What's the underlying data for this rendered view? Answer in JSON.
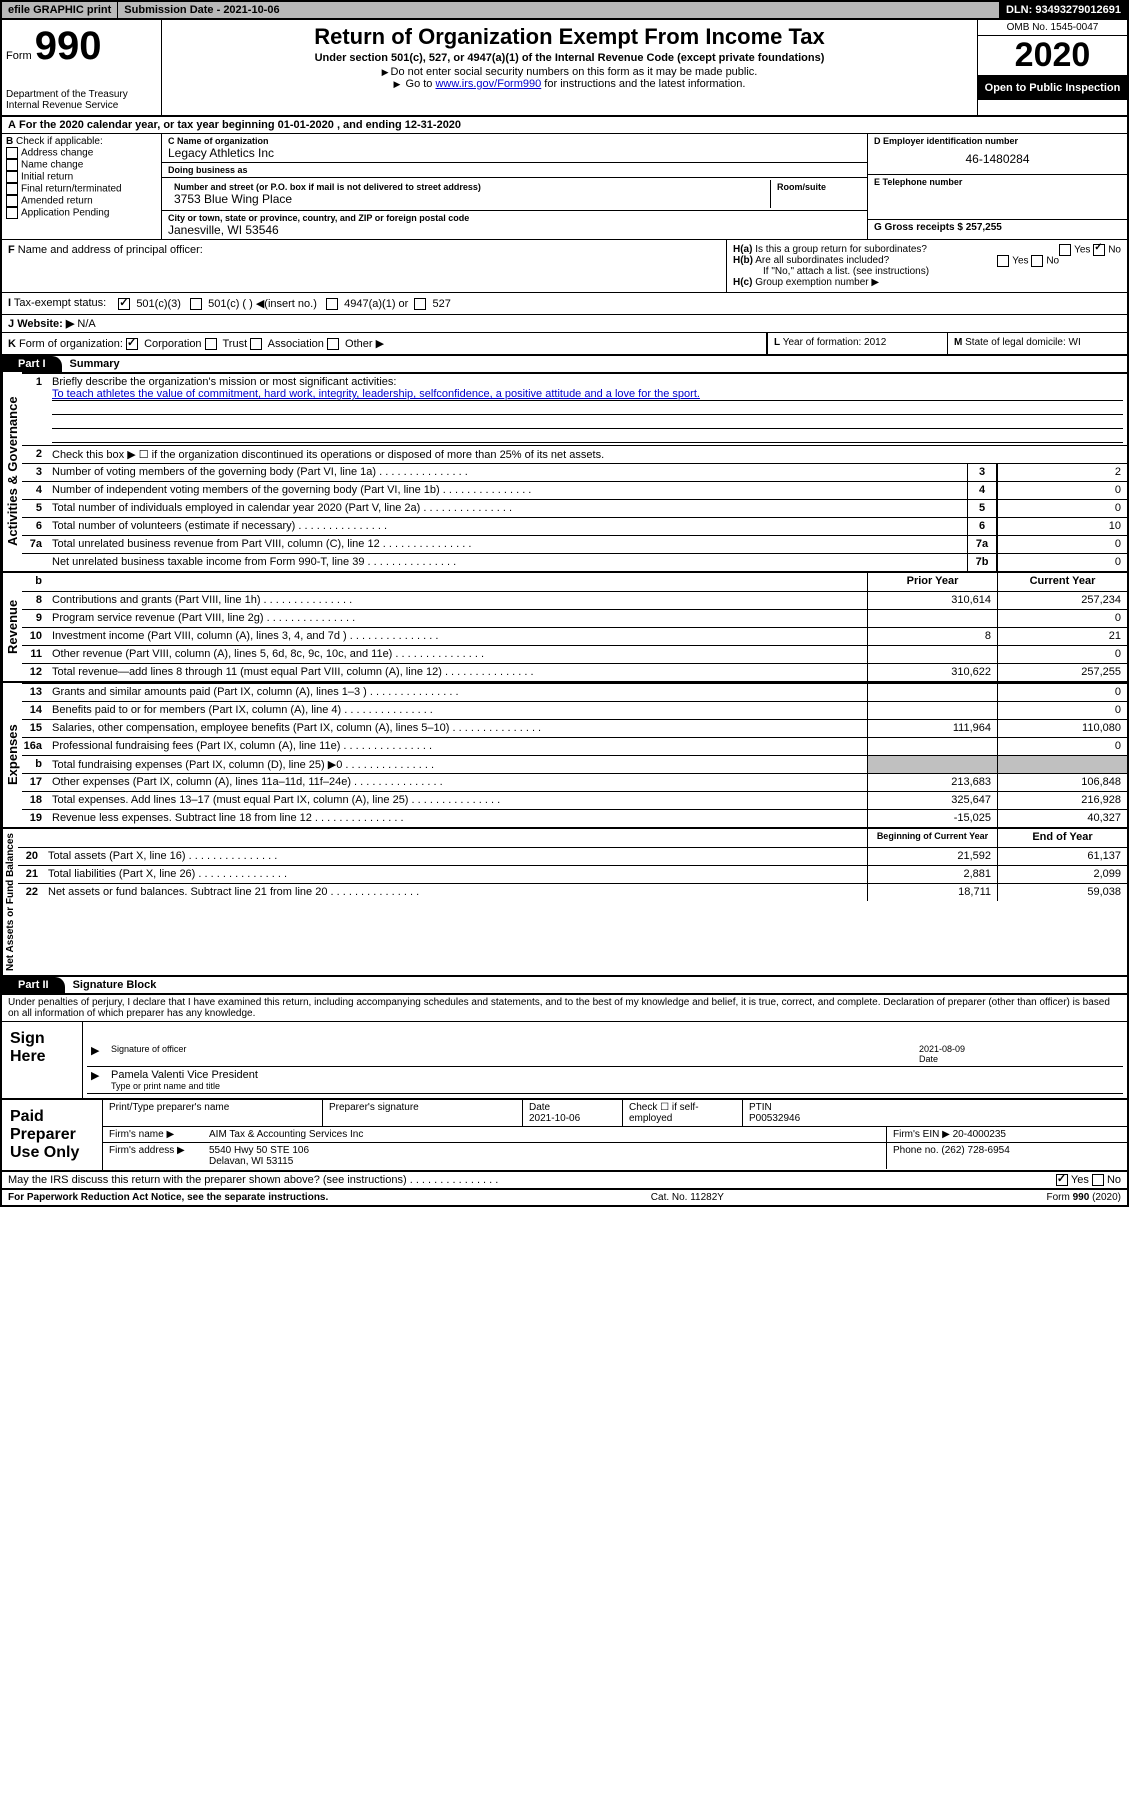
{
  "topbar": {
    "efile": "efile GRAPHIC print",
    "subdate_label": "Submission Date - 2021-10-06",
    "dln": "DLN: 93493279012691"
  },
  "header": {
    "form_word": "Form",
    "form_num": "990",
    "dept1": "Department of the Treasury",
    "dept2": "Internal Revenue Service",
    "title": "Return of Organization Exempt From Income Tax",
    "sub1": "Under section 501(c), 527, or 4947(a)(1) of the Internal Revenue Code (except private foundations)",
    "sub2": "Do not enter social security numbers on this form as it may be made public.",
    "sub3_pre": "Go to ",
    "sub3_link": "www.irs.gov/Form990",
    "sub3_post": " for instructions and the latest information.",
    "omb": "OMB No. 1545-0047",
    "year": "2020",
    "public": "Open to Public Inspection"
  },
  "row_a": "For the 2020 calendar year, or tax year beginning 01-01-2020   , and ending 12-31-2020",
  "section_b": {
    "check_label": "Check if applicable:",
    "opts": [
      "Address change",
      "Name change",
      "Initial return",
      "Final return/terminated",
      "Amended return",
      "Application Pending"
    ],
    "c_name_lbl": "C Name of organization",
    "c_name": "Legacy Athletics Inc",
    "dba_lbl": "Doing business as",
    "dba": "",
    "street_lbl": "Number and street (or P.O. box if mail is not delivered to street address)",
    "street": "3753 Blue Wing Place",
    "room_lbl": "Room/suite",
    "city_lbl": "City or town, state or province, country, and ZIP or foreign postal code",
    "city": "Janesville, WI  53546",
    "d_lbl": "D Employer identification number",
    "d_val": "46-1480284",
    "e_lbl": "E Telephone number",
    "e_val": "",
    "g_lbl": "G Gross receipts $ 257,255"
  },
  "section_f": {
    "f_lbl": "Name and address of principal officer:",
    "ha": "Is this a group return for subordinates?",
    "ha_no": true,
    "hb": "Are all subordinates included?",
    "hb_note": "If \"No,\" attach a list. (see instructions)",
    "hc": "Group exemption number ▶"
  },
  "tax_status": {
    "label": "Tax-exempt status:",
    "501c3": true,
    "opts": [
      "501(c)(3)",
      "501(c) (  ) ◀(insert no.)",
      "4947(a)(1) or",
      "527"
    ]
  },
  "website": {
    "label": "Website: ▶",
    "val": "N/A"
  },
  "org_form": {
    "label": "Form of organization:",
    "corp": true,
    "opts": [
      "Corporation",
      "Trust",
      "Association",
      "Other ▶"
    ],
    "l_lbl": "Year of formation: 2012",
    "m_lbl": "State of legal domicile: WI"
  },
  "part1": {
    "tab": "Part I",
    "title": "Summary"
  },
  "summary": {
    "q1_label": "Briefly describe the organization's mission or most significant activities:",
    "q1_text": "To teach athletes the value of commitment, hard work, integrity, leadership, selfconfidence, a positive attitude and a love for the sport.",
    "q2": "Check this box ▶ ☐  if the organization discontinued its operations or disposed of more than 25% of its net assets.",
    "vlabels": [
      "Activities & Governance",
      "Revenue",
      "Expenses",
      "Net Assets or Fund Balances"
    ]
  },
  "lines_simple": [
    {
      "n": "3",
      "d": "Number of voting members of the governing body (Part VI, line 1a)",
      "num": "3",
      "v": "2"
    },
    {
      "n": "4",
      "d": "Number of independent voting members of the governing body (Part VI, line 1b)",
      "num": "4",
      "v": "0"
    },
    {
      "n": "5",
      "d": "Total number of individuals employed in calendar year 2020 (Part V, line 2a)",
      "num": "5",
      "v": "0"
    },
    {
      "n": "6",
      "d": "Total number of volunteers (estimate if necessary)",
      "num": "6",
      "v": "10"
    },
    {
      "n": "7a",
      "d": "Total unrelated business revenue from Part VIII, column (C), line 12",
      "num": "7a",
      "v": "0"
    },
    {
      "n": "",
      "d": "Net unrelated business taxable income from Form 990-T, line 39",
      "num": "7b",
      "v": "0"
    }
  ],
  "yr_hdr": {
    "prior": "Prior Year",
    "current": "Current Year"
  },
  "lines_revenue": [
    {
      "n": "8",
      "d": "Contributions and grants (Part VIII, line 1h)",
      "p": "310,614",
      "c": "257,234"
    },
    {
      "n": "9",
      "d": "Program service revenue (Part VIII, line 2g)",
      "p": "",
      "c": "0"
    },
    {
      "n": "10",
      "d": "Investment income (Part VIII, column (A), lines 3, 4, and 7d )",
      "p": "8",
      "c": "21"
    },
    {
      "n": "11",
      "d": "Other revenue (Part VIII, column (A), lines 5, 6d, 8c, 9c, 10c, and 11e)",
      "p": "",
      "c": "0"
    },
    {
      "n": "12",
      "d": "Total revenue—add lines 8 through 11 (must equal Part VIII, column (A), line 12)",
      "p": "310,622",
      "c": "257,255"
    }
  ],
  "lines_expenses": [
    {
      "n": "13",
      "d": "Grants and similar amounts paid (Part IX, column (A), lines 1–3 )",
      "p": "",
      "c": "0"
    },
    {
      "n": "14",
      "d": "Benefits paid to or for members (Part IX, column (A), line 4)",
      "p": "",
      "c": "0"
    },
    {
      "n": "15",
      "d": "Salaries, other compensation, employee benefits (Part IX, column (A), lines 5–10)",
      "p": "111,964",
      "c": "110,080"
    },
    {
      "n": "16a",
      "d": "Professional fundraising fees (Part IX, column (A), line 11e)",
      "p": "",
      "c": "0"
    },
    {
      "n": "b",
      "d": "Total fundraising expenses (Part IX, column (D), line 25) ▶0",
      "p": "shade",
      "c": "shade"
    },
    {
      "n": "17",
      "d": "Other expenses (Part IX, column (A), lines 11a–11d, 11f–24e)",
      "p": "213,683",
      "c": "106,848"
    },
    {
      "n": "18",
      "d": "Total expenses. Add lines 13–17 (must equal Part IX, column (A), line 25)",
      "p": "325,647",
      "c": "216,928"
    },
    {
      "n": "19",
      "d": "Revenue less expenses. Subtract line 18 from line 12",
      "p": "-15,025",
      "c": "40,327"
    }
  ],
  "net_hdr": {
    "prior": "Beginning of Current Year",
    "current": "End of Year"
  },
  "lines_net": [
    {
      "n": "20",
      "d": "Total assets (Part X, line 16)",
      "p": "21,592",
      "c": "61,137"
    },
    {
      "n": "21",
      "d": "Total liabilities (Part X, line 26)",
      "p": "2,881",
      "c": "2,099"
    },
    {
      "n": "22",
      "d": "Net assets or fund balances. Subtract line 21 from line 20",
      "p": "18,711",
      "c": "59,038"
    }
  ],
  "part2": {
    "tab": "Part II",
    "title": "Signature Block"
  },
  "perjury": "Under penalties of perjury, I declare that I have examined this return, including accompanying schedules and statements, and to the best of my knowledge and belief, it is true, correct, and complete. Declaration of preparer (other than officer) is based on all information of which preparer has any knowledge.",
  "sign": {
    "label": "Sign Here",
    "sig_lbl": "Signature of officer",
    "date_lbl": "Date",
    "date": "2021-08-09",
    "name": "Pamela Valenti Vice President",
    "name_lbl": "Type or print name and title"
  },
  "prep": {
    "label": "Paid Preparer Use Only",
    "h1": "Print/Type preparer's name",
    "h2": "Preparer's signature",
    "h3": "Date",
    "h3v": "2021-10-06",
    "h4": "Check ☐ if self-employed",
    "h5": "PTIN",
    "h5v": "P00532946",
    "firm_lbl": "Firm's name    ▶",
    "firm": "AIM Tax & Accounting Services Inc",
    "ein_lbl": "Firm's EIN ▶",
    "ein": "20-4000235",
    "addr_lbl": "Firm's address ▶",
    "addr1": "5540 Hwy 50 STE 106",
    "addr2": "Delavan, WI  53115",
    "phone_lbl": "Phone no.",
    "phone": "(262) 728-6954"
  },
  "discuss": {
    "q": "May the IRS discuss this return with the preparer shown above? (see instructions)",
    "yes": true
  },
  "footer": {
    "left": "For Paperwork Reduction Act Notice, see the separate instructions.",
    "mid": "Cat. No. 11282Y",
    "right": "Form 990 (2020)"
  }
}
